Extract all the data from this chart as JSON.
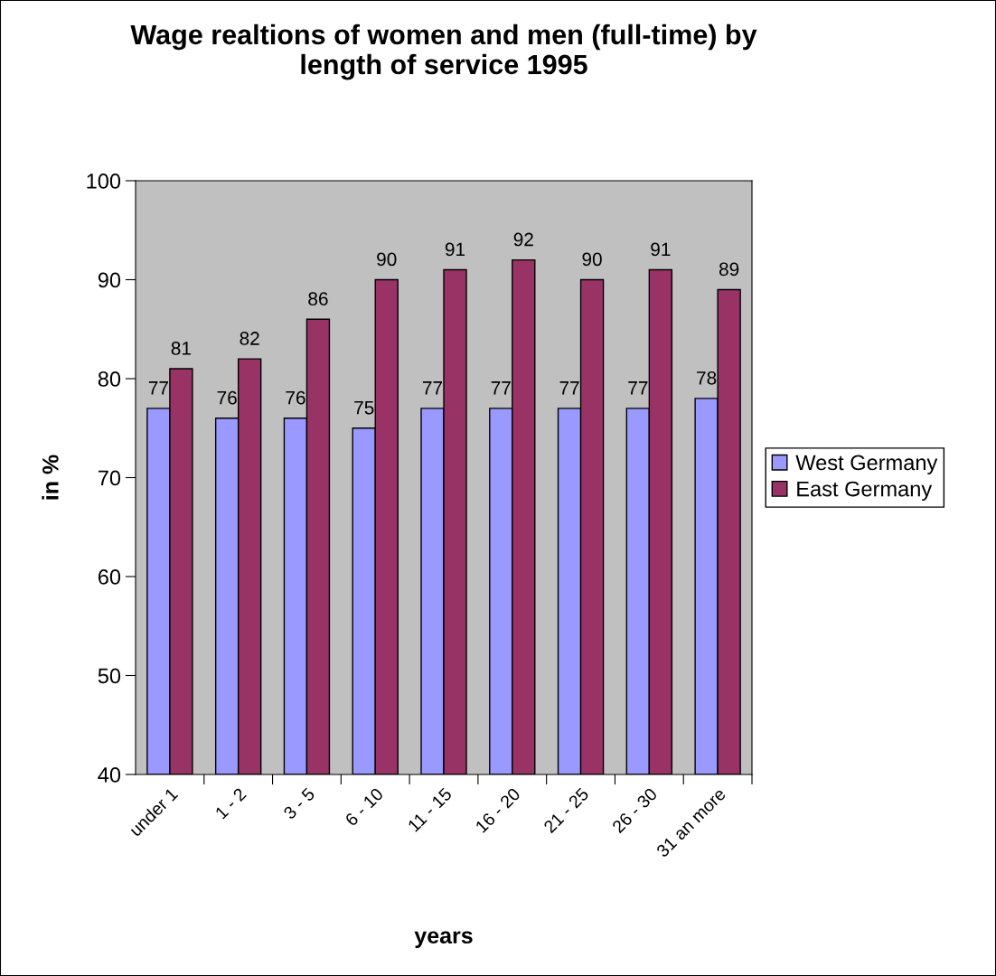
{
  "chart_data": {
    "type": "bar",
    "title": "Wage realtions of women and men (full-time) by\nlength of service 1995",
    "xlabel": "years",
    "ylabel": "in %",
    "categories": [
      "under 1",
      "1 - 2",
      "3 - 5",
      "6 - 10",
      "11 - 15",
      "16 - 20",
      "21 - 25",
      "26 - 30",
      "31 an more"
    ],
    "series": [
      {
        "name": "West Germany",
        "color": "#9999ff",
        "values": [
          77,
          76,
          76,
          75,
          77,
          77,
          77,
          77,
          78
        ]
      },
      {
        "name": "East Germany",
        "color": "#993366",
        "values": [
          81,
          82,
          86,
          90,
          91,
          92,
          90,
          91,
          89
        ]
      }
    ],
    "ylim": [
      40,
      100
    ],
    "yticks": [
      40,
      50,
      60,
      70,
      80,
      90,
      100
    ],
    "data_labels": true,
    "legend": "right",
    "grid": false
  }
}
